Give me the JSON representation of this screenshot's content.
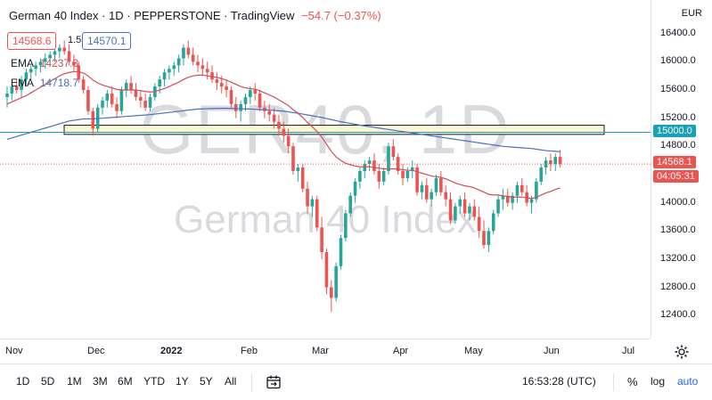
{
  "header": {
    "symbol": "German 40 Index",
    "interval": "1D",
    "broker": "PEPPERSTONE",
    "platform": "TradingView",
    "change": "−54.7 (−0.37%)"
  },
  "watermark": {
    "ticker": "GER40, 1D",
    "name": "German 40 Index"
  },
  "quote": {
    "bid": "14568.6",
    "spread": "1.5",
    "ask": "14570.1"
  },
  "indicators": [
    {
      "label": "EMA",
      "value": "14237.3",
      "color": "#d24d57"
    },
    {
      "label": "EMA",
      "value": "14718.7",
      "color": "#4a6fc4"
    }
  ],
  "currency": "EUR",
  "price_axis": [
    "16400.0",
    "16000.0",
    "15600.0",
    "15200.0",
    "14800.0",
    "14000.0",
    "13600.0",
    "13200.0",
    "12800.0",
    "12400.0"
  ],
  "price_tags": {
    "level": "15000.0",
    "last": "14568.1",
    "countdown": "04:05:31"
  },
  "time_axis": [
    "Nov",
    "Dec",
    "2022",
    "Feb",
    "Mar",
    "Apr",
    "May",
    "Jun",
    "Jul"
  ],
  "toolbar": {
    "ranges": [
      "1D",
      "5D",
      "1M",
      "3M",
      "6M",
      "YTD",
      "1Y",
      "5Y",
      "All"
    ],
    "clock": "16:53:28 (UTC)",
    "percent": "%",
    "log": "log",
    "auto": "auto"
  },
  "colors": {
    "up": "#26a69a",
    "down": "#ef5350",
    "ema_fast": "#d24d57",
    "ema_slow": "#4a6fc4",
    "level": "#17a2b8",
    "zone": "#fbf5d6"
  },
  "chart_data": {
    "type": "candlestick",
    "ylim": [
      12200,
      16700
    ],
    "level": 15000,
    "zone": [
      14970,
      15100
    ],
    "ohlc": [
      [
        15500,
        15650,
        15350,
        15550
      ],
      [
        15550,
        15700,
        15450,
        15650
      ],
      [
        15650,
        15750,
        15550,
        15600
      ],
      [
        15600,
        15800,
        15500,
        15750
      ],
      [
        15750,
        15900,
        15650,
        15850
      ],
      [
        15850,
        15950,
        15750,
        15900
      ],
      [
        15900,
        16000,
        15800,
        15950
      ],
      [
        15950,
        16050,
        15850,
        16000
      ],
      [
        16000,
        16120,
        15900,
        16050
      ],
      [
        16050,
        16150,
        15950,
        16100
      ],
      [
        16100,
        16200,
        16000,
        16150
      ],
      [
        16150,
        16250,
        16050,
        16200
      ],
      [
        16200,
        16300,
        16100,
        16150
      ],
      [
        16150,
        16250,
        15950,
        16000
      ],
      [
        16000,
        16100,
        15850,
        15950
      ],
      [
        15950,
        16000,
        15700,
        15750
      ],
      [
        15750,
        15800,
        15550,
        15600
      ],
      [
        15600,
        15650,
        15250,
        15300
      ],
      [
        15300,
        15350,
        14950,
        15050
      ],
      [
        15050,
        15400,
        15000,
        15350
      ],
      [
        15350,
        15500,
        15250,
        15450
      ],
      [
        15450,
        15600,
        15350,
        15550
      ],
      [
        15550,
        15650,
        15350,
        15400
      ],
      [
        15400,
        15500,
        15200,
        15300
      ],
      [
        15300,
        15650,
        15250,
        15600
      ],
      [
        15600,
        15750,
        15500,
        15700
      ],
      [
        15700,
        15800,
        15550,
        15600
      ],
      [
        15600,
        15700,
        15450,
        15500
      ],
      [
        15500,
        15600,
        15350,
        15450
      ],
      [
        15450,
        15550,
        15300,
        15350
      ],
      [
        15350,
        15550,
        15300,
        15500
      ],
      [
        15500,
        15700,
        15450,
        15650
      ],
      [
        15650,
        15800,
        15550,
        15750
      ],
      [
        15750,
        15900,
        15650,
        15850
      ],
      [
        15850,
        15950,
        15750,
        15900
      ],
      [
        15900,
        16000,
        15800,
        15950
      ],
      [
        15950,
        16100,
        15850,
        16050
      ],
      [
        16050,
        16250,
        15950,
        16200
      ],
      [
        16200,
        16300,
        16050,
        16100
      ],
      [
        16100,
        16200,
        15950,
        16000
      ],
      [
        16000,
        16100,
        15850,
        15950
      ],
      [
        15950,
        16050,
        15800,
        15900
      ],
      [
        15900,
        16000,
        15750,
        15850
      ],
      [
        15850,
        15950,
        15700,
        15750
      ],
      [
        15750,
        15850,
        15600,
        15700
      ],
      [
        15700,
        15800,
        15550,
        15650
      ],
      [
        15650,
        15750,
        15500,
        15600
      ],
      [
        15600,
        15650,
        15350,
        15400
      ],
      [
        15400,
        15500,
        15200,
        15300
      ],
      [
        15300,
        15450,
        15150,
        15400
      ],
      [
        15400,
        15550,
        15300,
        15500
      ],
      [
        15500,
        15650,
        15400,
        15600
      ],
      [
        15600,
        15700,
        15450,
        15550
      ],
      [
        15550,
        15600,
        15300,
        15350
      ],
      [
        15350,
        15450,
        15200,
        15300
      ],
      [
        15300,
        15400,
        15150,
        15250
      ],
      [
        15250,
        15350,
        15050,
        15150
      ],
      [
        15150,
        15250,
        14950,
        15050
      ],
      [
        15050,
        15150,
        14850,
        14950
      ],
      [
        14950,
        15050,
        14700,
        14800
      ],
      [
        14800,
        14850,
        14400,
        14450
      ],
      [
        14450,
        14550,
        14300,
        14500
      ],
      [
        14500,
        14550,
        14150,
        14200
      ],
      [
        14200,
        14300,
        13850,
        13950
      ],
      [
        13950,
        14100,
        13800,
        14050
      ],
      [
        14050,
        14100,
        13600,
        13650
      ],
      [
        13650,
        13800,
        13200,
        13300
      ],
      [
        13300,
        13350,
        12700,
        12800
      ],
      [
        12800,
        12900,
        12450,
        12650
      ],
      [
        12650,
        13150,
        12600,
        13100
      ],
      [
        13100,
        13550,
        13050,
        13500
      ],
      [
        13500,
        13900,
        13450,
        13850
      ],
      [
        13850,
        14150,
        13800,
        14100
      ],
      [
        14100,
        14350,
        14000,
        14300
      ],
      [
        14300,
        14500,
        14200,
        14450
      ],
      [
        14450,
        14600,
        14350,
        14550
      ],
      [
        14550,
        14650,
        14450,
        14600
      ],
      [
        14600,
        14700,
        14400,
        14450
      ],
      [
        14450,
        14550,
        14200,
        14300
      ],
      [
        14300,
        14500,
        14250,
        14450
      ],
      [
        14450,
        14850,
        14400,
        14800
      ],
      [
        14800,
        14900,
        14600,
        14650
      ],
      [
        14650,
        14700,
        14400,
        14450
      ],
      [
        14450,
        14550,
        14250,
        14350
      ],
      [
        14350,
        14500,
        14300,
        14450
      ],
      [
        14450,
        14600,
        14350,
        14500
      ],
      [
        14500,
        14550,
        14100,
        14150
      ],
      [
        14150,
        14300,
        14050,
        14250
      ],
      [
        14250,
        14350,
        14000,
        14050
      ],
      [
        14050,
        14200,
        13950,
        14150
      ],
      [
        14150,
        14400,
        14100,
        14350
      ],
      [
        14350,
        14450,
        14100,
        14150
      ],
      [
        14150,
        14250,
        13950,
        14050
      ],
      [
        14050,
        14150,
        13700,
        13750
      ],
      [
        13750,
        14000,
        13700,
        13950
      ],
      [
        13950,
        14100,
        13850,
        14050
      ],
      [
        14050,
        14150,
        13800,
        13850
      ],
      [
        13850,
        14000,
        13750,
        13950
      ],
      [
        13950,
        14050,
        13750,
        13800
      ],
      [
        13800,
        13950,
        13500,
        13600
      ],
      [
        13600,
        13750,
        13350,
        13400
      ],
      [
        13400,
        13650,
        13300,
        13600
      ],
      [
        13600,
        13900,
        13550,
        13850
      ],
      [
        13850,
        14100,
        13800,
        14050
      ],
      [
        14050,
        14200,
        13900,
        14100
      ],
      [
        14100,
        14200,
        13950,
        14000
      ],
      [
        14000,
        14150,
        13900,
        14100
      ],
      [
        14100,
        14300,
        14000,
        14250
      ],
      [
        14250,
        14350,
        14100,
        14150
      ],
      [
        14150,
        14250,
        13950,
        14000
      ],
      [
        14000,
        14100,
        13850,
        14050
      ],
      [
        14050,
        14350,
        14000,
        14300
      ],
      [
        14300,
        14550,
        14250,
        14500
      ],
      [
        14500,
        14650,
        14400,
        14600
      ],
      [
        14600,
        14700,
        14450,
        14550
      ],
      [
        14550,
        14700,
        14450,
        14650
      ],
      [
        14650,
        14750,
        14500,
        14550
      ]
    ],
    "ema_fast": [
      15400,
      15430,
      15460,
      15490,
      15520,
      15560,
      15600,
      15640,
      15680,
      15720,
      15760,
      15800,
      15830,
      15850,
      15860,
      15860,
      15840,
      15800,
      15740,
      15700,
      15670,
      15650,
      15630,
      15610,
      15600,
      15600,
      15600,
      15600,
      15590,
      15580,
      15570,
      15580,
      15600,
      15620,
      15650,
      15680,
      15710,
      15750,
      15780,
      15800,
      15810,
      15810,
      15800,
      15790,
      15780,
      15760,
      15740,
      15710,
      15680,
      15650,
      15630,
      15620,
      15610,
      15590,
      15560,
      15530,
      15500,
      15460,
      15420,
      15380,
      15320,
      15270,
      15210,
      15140,
      15080,
      15010,
      14930,
      14830,
      14730,
      14650,
      14600,
      14560,
      14540,
      14520,
      14510,
      14510,
      14510,
      14500,
      14490,
      14480,
      14480,
      14480,
      14480,
      14470,
      14460,
      14460,
      14440,
      14420,
      14400,
      14380,
      14370,
      14360,
      14340,
      14310,
      14280,
      14260,
      14240,
      14230,
      14210,
      14180,
      14150,
      14120,
      14110,
      14110,
      14100,
      14090,
      14080,
      14080,
      14080,
      14070,
      14060,
      14080,
      14110,
      14140,
      14160,
      14190,
      14210
    ],
    "ema_slow": [
      14900,
      14920,
      14940,
      14960,
      14980,
      15000,
      15020,
      15040,
      15060,
      15080,
      15100,
      15120,
      15140,
      15160,
      15170,
      15180,
      15190,
      15190,
      15190,
      15195,
      15200,
      15205,
      15210,
      15215,
      15220,
      15225,
      15230,
      15235,
      15240,
      15245,
      15250,
      15258,
      15266,
      15274,
      15282,
      15290,
      15298,
      15306,
      15314,
      15322,
      15330,
      15332,
      15334,
      15336,
      15338,
      15340,
      15340,
      15338,
      15336,
      15334,
      15332,
      15330,
      15326,
      15322,
      15318,
      15314,
      15310,
      15305,
      15300,
      15290,
      15280,
      15270,
      15258,
      15246,
      15234,
      15222,
      15210,
      15195,
      15180,
      15165,
      15150,
      15138,
      15126,
      15114,
      15102,
      15090,
      15080,
      15070,
      15060,
      15050,
      15040,
      15030,
      15020,
      15010,
      15000,
      14990,
      14980,
      14970,
      14960,
      14950,
      14940,
      14930,
      14920,
      14910,
      14900,
      14890,
      14880,
      14870,
      14860,
      14850,
      14840,
      14830,
      14820,
      14810,
      14800,
      14795,
      14790,
      14785,
      14780,
      14775,
      14770,
      14760,
      14750,
      14740,
      14735,
      14730,
      14725
    ]
  }
}
